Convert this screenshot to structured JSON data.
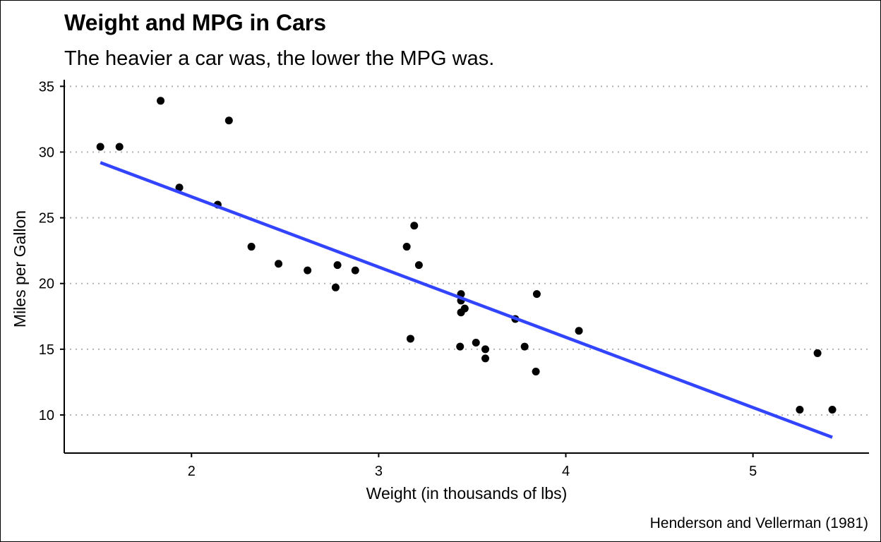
{
  "chart_data": {
    "type": "scatter",
    "title": "Weight and MPG in Cars",
    "subtitle": "The heavier a car was, the lower the MPG was.",
    "xlabel": "Weight (in thousands of lbs)",
    "ylabel": "Miles per Gallon",
    "caption": "Henderson and Vellerman (1981)",
    "xlim": [
      1.32,
      5.62
    ],
    "ylim": [
      7.1,
      35.5
    ],
    "xticks": [
      2,
      3,
      4,
      5
    ],
    "yticks": [
      10,
      15,
      20,
      25,
      30,
      35
    ],
    "grid": "horizontal-dotted",
    "point_color": "#000000",
    "trend_color": "#3344ff",
    "trend_line": {
      "x": [
        1.513,
        5.424
      ],
      "y": [
        29.2,
        8.3
      ]
    },
    "points": [
      {
        "x": 2.62,
        "y": 21.0
      },
      {
        "x": 2.875,
        "y": 21.0
      },
      {
        "x": 2.32,
        "y": 22.8
      },
      {
        "x": 3.215,
        "y": 21.4
      },
      {
        "x": 3.44,
        "y": 18.7
      },
      {
        "x": 3.46,
        "y": 18.1
      },
      {
        "x": 3.57,
        "y": 14.3
      },
      {
        "x": 3.19,
        "y": 24.4
      },
      {
        "x": 3.15,
        "y": 22.8
      },
      {
        "x": 3.44,
        "y": 19.2
      },
      {
        "x": 3.44,
        "y": 17.8
      },
      {
        "x": 4.07,
        "y": 16.4
      },
      {
        "x": 3.73,
        "y": 17.3
      },
      {
        "x": 3.78,
        "y": 15.2
      },
      {
        "x": 5.25,
        "y": 10.4
      },
      {
        "x": 5.424,
        "y": 10.4
      },
      {
        "x": 5.345,
        "y": 14.7
      },
      {
        "x": 2.2,
        "y": 32.4
      },
      {
        "x": 1.615,
        "y": 30.4
      },
      {
        "x": 1.835,
        "y": 33.9
      },
      {
        "x": 2.465,
        "y": 21.5
      },
      {
        "x": 3.52,
        "y": 15.5
      },
      {
        "x": 3.435,
        "y": 15.2
      },
      {
        "x": 3.84,
        "y": 13.3
      },
      {
        "x": 3.845,
        "y": 19.2
      },
      {
        "x": 1.935,
        "y": 27.3
      },
      {
        "x": 2.14,
        "y": 26.0
      },
      {
        "x": 1.513,
        "y": 30.4
      },
      {
        "x": 3.17,
        "y": 15.8
      },
      {
        "x": 2.77,
        "y": 19.7
      },
      {
        "x": 3.57,
        "y": 15.0
      },
      {
        "x": 2.78,
        "y": 21.4
      }
    ]
  }
}
